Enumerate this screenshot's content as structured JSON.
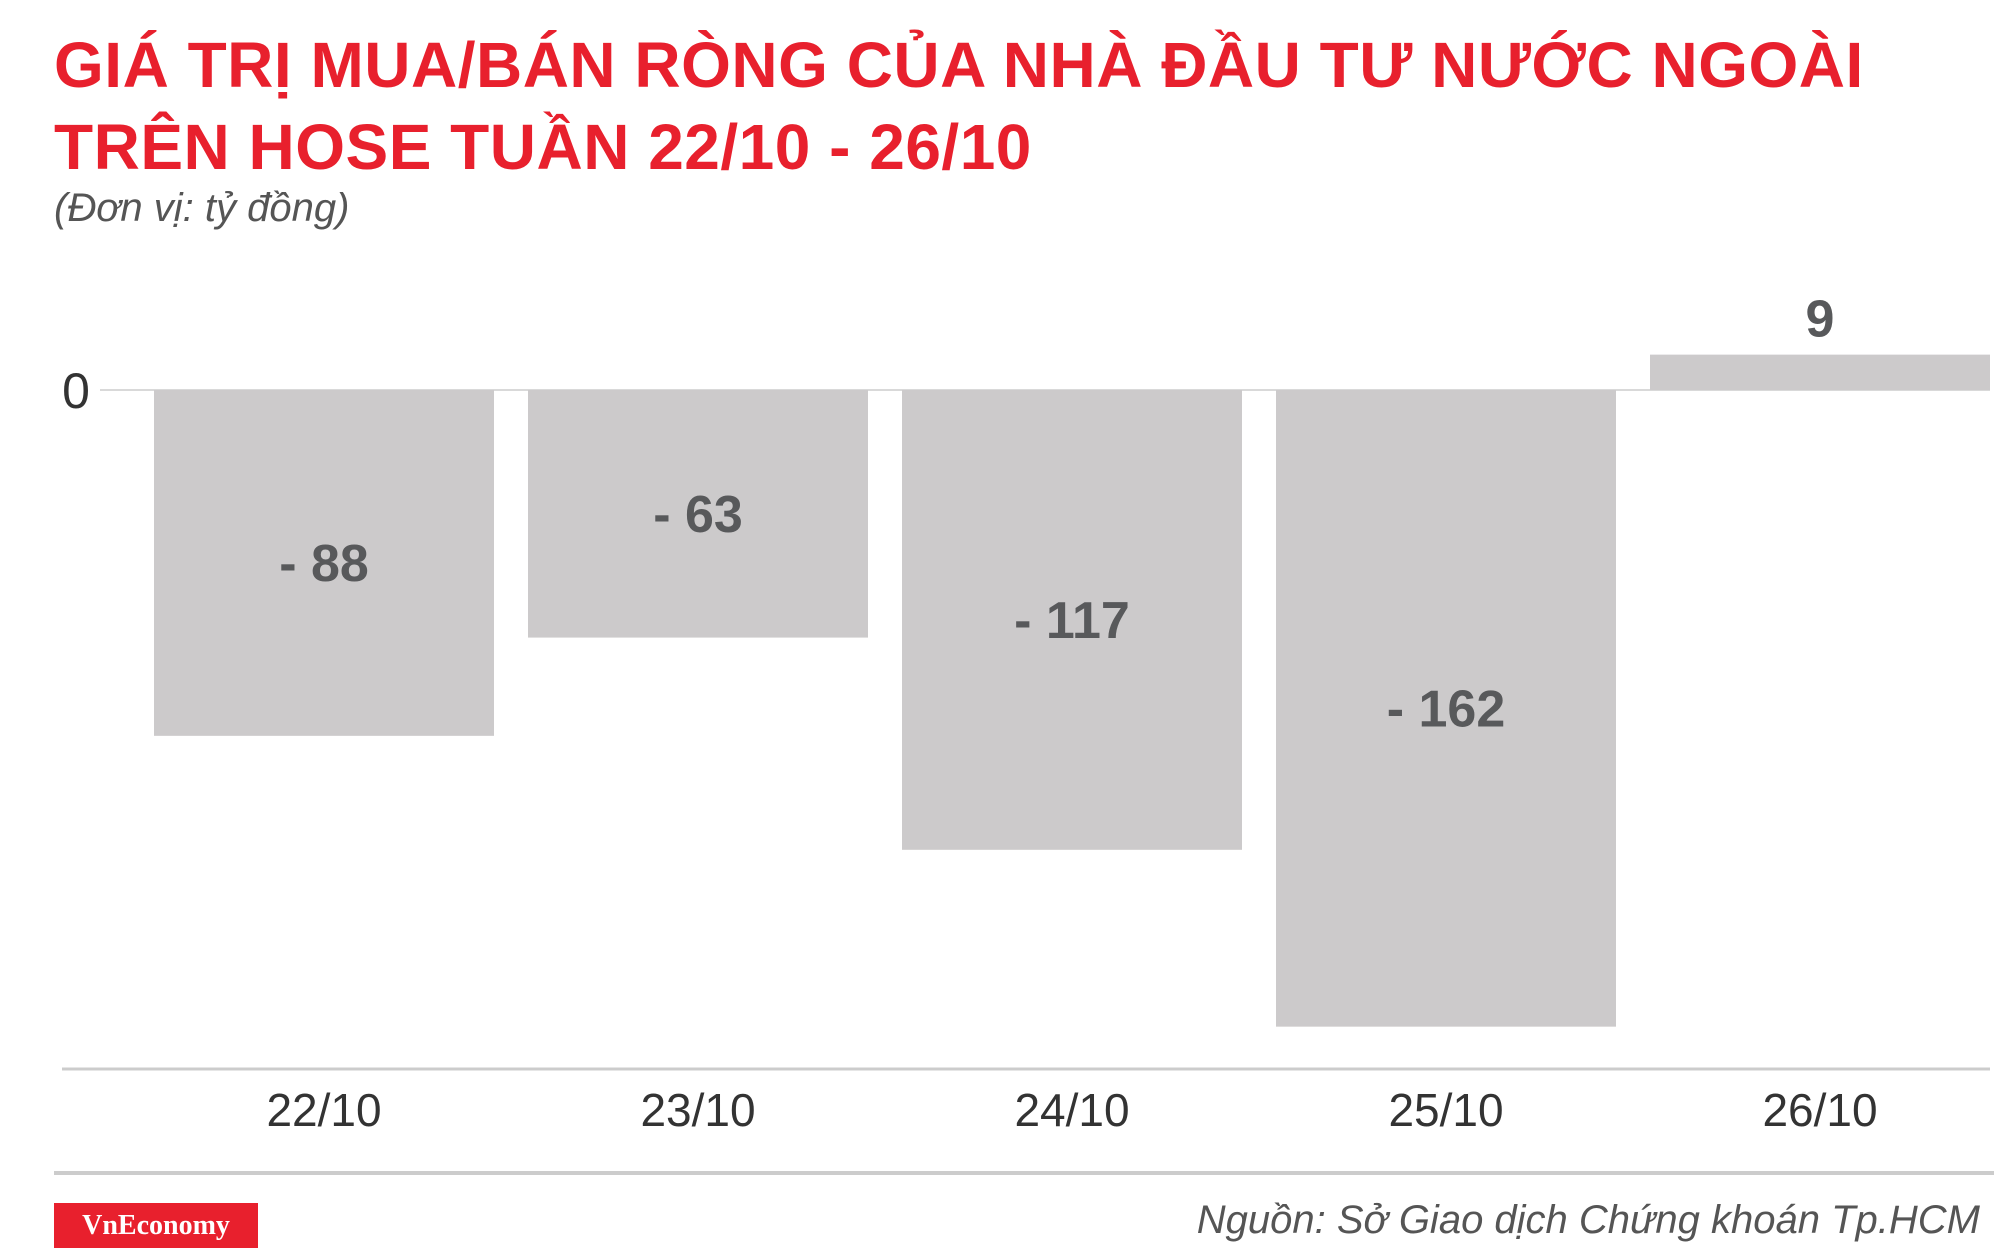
{
  "title_line1": "GIÁ TRỊ MUA/BÁN RÒNG CỦA NHÀ ĐẦU TƯ NƯỚC NGOÀI",
  "title_line2": "TRÊN HOSE TUẦN 22/10 - 26/10",
  "unit": "(Đơn vị: tỷ đồng)",
  "zero_label": "0",
  "logo": "VnEconomy",
  "source": "Nguồn: Sở Giao dịch Chứng khoán Tp.HCM",
  "colors": {
    "title": "#e8202d",
    "bar": "#cccacb",
    "label": "#58595b",
    "axis": "#cccccc",
    "logo_bg": "#e8202d"
  },
  "chart_data": {
    "type": "bar",
    "categories": [
      "22/10",
      "23/10",
      "24/10",
      "25/10",
      "26/10"
    ],
    "values": [
      -88,
      -63,
      -117,
      -162,
      9
    ],
    "data_labels": [
      "- 88",
      "- 63",
      "- 117",
      "- 162",
      "9"
    ],
    "title": "GIÁ TRỊ MUA/BÁN RÒNG CỦA NHÀ ĐẦU TƯ NƯỚC NGOÀI TRÊN HOSE TUẦN 22/10 - 26/10",
    "ylabel": "(Đơn vị: tỷ đồng)",
    "yticks": [
      "0"
    ],
    "ylim": [
      -162,
      9
    ],
    "grid": false,
    "legend": "none"
  }
}
